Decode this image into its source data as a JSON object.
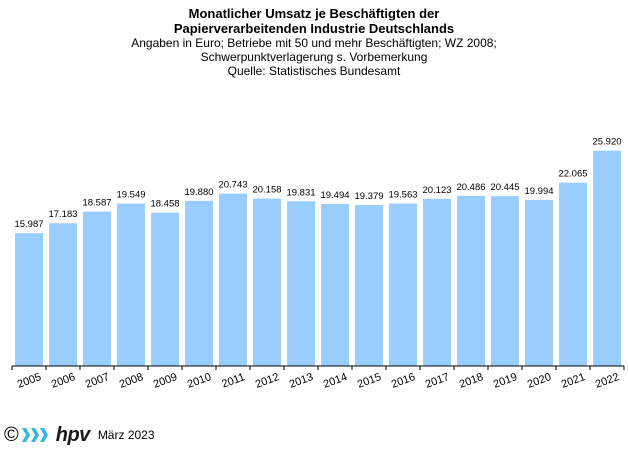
{
  "chart_data": {
    "type": "bar",
    "title_line1": "Monatlicher Umsatz je Beschäftigten der",
    "title_line2": "Papierverarbeitenden Industrie Deutschlands",
    "subtitle_line1": "Angaben  in Euro; Betriebe mit 50 und mehr Beschäftigten; WZ 2008;",
    "subtitle_line2": "Schwerpunktverlagerung  s. Vorbemerkung",
    "source": "Quelle: Statistisches Bundesamt",
    "categories": [
      "2005",
      "2006",
      "2007",
      "2008",
      "2009",
      "2010",
      "2011",
      "2012",
      "2013",
      "2014",
      "2015",
      "2016",
      "2017",
      "2018",
      "2019",
      "2020",
      "2021",
      "2022"
    ],
    "values": [
      15987,
      17183,
      18587,
      19549,
      18458,
      19880,
      20743,
      20158,
      19831,
      19494,
      19379,
      19563,
      20123,
      20486,
      20445,
      19994,
      22065,
      25920
    ],
    "labels": [
      "15.987",
      "17.183",
      "18.587",
      "19.549",
      "18.458",
      "19.880",
      "20.743",
      "20.158",
      "19.831",
      "19.494",
      "19.379",
      "19.563",
      "20.123",
      "20.486",
      "20.445",
      "19.994",
      "22.065",
      "25.920"
    ],
    "ylim": [
      0,
      26000
    ],
    "bar_color": "#99ccff",
    "xlabel": "",
    "ylabel": ""
  },
  "footer": {
    "copyright": "©",
    "logo_text": "hpv",
    "date": "März 2023",
    "logo_color": "#33b5e5"
  }
}
